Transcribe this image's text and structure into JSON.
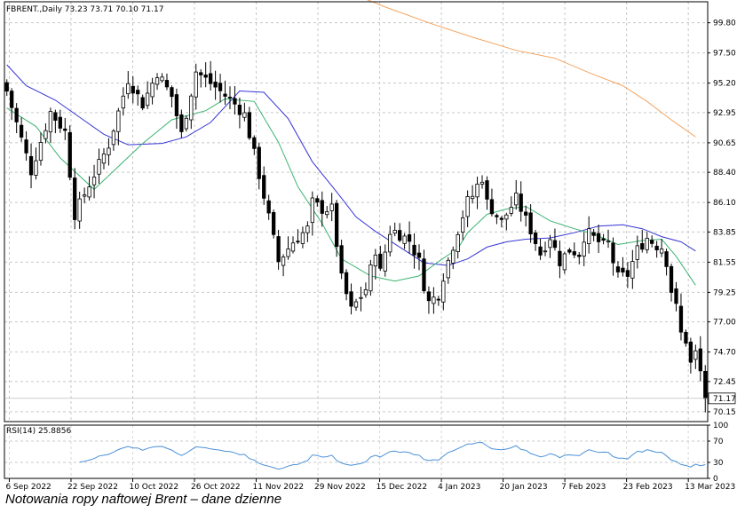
{
  "chart_data": {
    "type": "candlestick",
    "instrument_label": "FBRENT.,Daily  73.23 73.71 70.10 71.17",
    "last_ohlc": {
      "open": 73.23,
      "high": 73.71,
      "low": 70.1,
      "close": 71.17
    },
    "last_price_label": "71.17",
    "price_axis": {
      "ylim": [
        69.4,
        101.4
      ],
      "ticks": [
        "99.80",
        "97.50",
        "95.20",
        "92.95",
        "90.65",
        "88.40",
        "86.10",
        "83.85",
        "81.55",
        "79.25",
        "77.00",
        "74.70",
        "72.45",
        "70.15"
      ]
    },
    "x_labels": [
      "6 Sep 2022",
      "22 Sep 2022",
      "10 Oct 2022",
      "26 Oct 2022",
      "11 Nov 2022",
      "29 Nov 2022",
      "15 Dec 2022",
      "4 Jan 2023",
      "20 Jan 2023",
      "7 Feb 2023",
      "23 Feb 2023",
      "13 Mar 2023"
    ],
    "close_path": [
      [
        0,
        94.6
      ],
      [
        5,
        88.5
      ],
      [
        9,
        93.0
      ],
      [
        12,
        91.5
      ],
      [
        14,
        85.2
      ],
      [
        17,
        87.5
      ],
      [
        21,
        90.5
      ],
      [
        25,
        95.5
      ],
      [
        28,
        93.6
      ],
      [
        31,
        96.0
      ],
      [
        34,
        94.2
      ],
      [
        36,
        91.3
      ],
      [
        39,
        96.1
      ],
      [
        43,
        94.9
      ],
      [
        47,
        93.6
      ],
      [
        49,
        92.8
      ],
      [
        51,
        89.8
      ],
      [
        54,
        85.0
      ],
      [
        56,
        81.6
      ],
      [
        59,
        83.1
      ],
      [
        62,
        84.1
      ],
      [
        63,
        86.1
      ],
      [
        65,
        85.6
      ],
      [
        67,
        85.6
      ],
      [
        69,
        80.3
      ],
      [
        71,
        77.9
      ],
      [
        74,
        79.5
      ],
      [
        76,
        82.5
      ],
      [
        77,
        80.8
      ],
      [
        79,
        83.9
      ],
      [
        80,
        83.9
      ],
      [
        83,
        83.2
      ],
      [
        85,
        81.6
      ],
      [
        86,
        79.8
      ],
      [
        87,
        78.5
      ],
      [
        89,
        79.1
      ],
      [
        90,
        80.5
      ],
      [
        93,
        84.0
      ],
      [
        95,
        86.2
      ],
      [
        96,
        86.6
      ],
      [
        97,
        87.4
      ],
      [
        98,
        88.0
      ],
      [
        99,
        86.1
      ],
      [
        102,
        84.6
      ],
      [
        105,
        86.4
      ],
      [
        108,
        84.0
      ],
      [
        110,
        82.2
      ],
      [
        112,
        83.5
      ],
      [
        114,
        81.6
      ],
      [
        116,
        82.5
      ],
      [
        118,
        82.2
      ],
      [
        119,
        83.5
      ],
      [
        120,
        83.7
      ],
      [
        121,
        83.4
      ],
      [
        123,
        82.8
      ],
      [
        124,
        83.0
      ],
      [
        125,
        81.6
      ],
      [
        126,
        80.4
      ],
      [
        128,
        80.6
      ],
      [
        130,
        82.5
      ],
      [
        132,
        83.4
      ],
      [
        133,
        83.1
      ],
      [
        134,
        82.8
      ],
      [
        135,
        82.7
      ],
      [
        136,
        81.6
      ],
      [
        137,
        79.4
      ],
      [
        138,
        78.1
      ],
      [
        139,
        76.1
      ],
      [
        140,
        75.6
      ],
      [
        141,
        73.8
      ],
      [
        142,
        74.6
      ],
      [
        143,
        73.2
      ],
      [
        144,
        71.17
      ]
    ],
    "sma_short": {
      "color": "#3cb371",
      "values": [
        [
          0,
          93.3
        ],
        [
          6,
          91.9
        ],
        [
          11,
          89.5
        ],
        [
          18,
          87.1
        ],
        [
          22,
          88.5
        ],
        [
          28,
          90.6
        ],
        [
          34,
          92.4
        ],
        [
          41,
          93.1
        ],
        [
          45,
          94.0
        ],
        [
          51,
          93.8
        ],
        [
          56,
          90.7
        ],
        [
          60,
          87.3
        ],
        [
          65,
          84.5
        ],
        [
          69,
          81.8
        ],
        [
          75,
          80.5
        ],
        [
          80,
          80.1
        ],
        [
          85,
          80.5
        ],
        [
          89,
          81.6
        ],
        [
          93,
          82.6
        ],
        [
          95,
          83.8
        ],
        [
          99,
          85.2
        ],
        [
          103,
          85.6
        ],
        [
          107,
          85.8
        ],
        [
          112,
          84.7
        ],
        [
          117,
          84.1
        ],
        [
          121,
          83.7
        ],
        [
          126,
          82.9
        ],
        [
          131,
          83.2
        ],
        [
          135,
          83.3
        ],
        [
          138,
          82.0
        ],
        [
          142,
          79.8
        ]
      ]
    },
    "sma_mid": {
      "color": "#3636d6",
      "values": [
        [
          0,
          96.6
        ],
        [
          4,
          95.0
        ],
        [
          10,
          93.9
        ],
        [
          15,
          92.6
        ],
        [
          20,
          91.3
        ],
        [
          25,
          90.5
        ],
        [
          32,
          90.6
        ],
        [
          37,
          91.1
        ],
        [
          42,
          92.2
        ],
        [
          48,
          94.6
        ],
        [
          53,
          94.5
        ],
        [
          58,
          92.5
        ],
        [
          63,
          89.2
        ],
        [
          68,
          86.9
        ],
        [
          72,
          85.0
        ],
        [
          76,
          83.9
        ],
        [
          81,
          82.7
        ],
        [
          86,
          81.5
        ],
        [
          91,
          81.3
        ],
        [
          95,
          81.8
        ],
        [
          99,
          82.7
        ],
        [
          103,
          83.1
        ],
        [
          107,
          83.3
        ],
        [
          112,
          83.4
        ],
        [
          117,
          83.8
        ],
        [
          122,
          84.3
        ],
        [
          127,
          84.4
        ],
        [
          131,
          84.1
        ],
        [
          135,
          83.5
        ],
        [
          139,
          83.1
        ],
        [
          142,
          82.4
        ]
      ]
    },
    "sma_long": {
      "color": "#f4a460",
      "values": [
        [
          70,
          102.2
        ],
        [
          78,
          101.0
        ],
        [
          87,
          99.8
        ],
        [
          96,
          98.7
        ],
        [
          105,
          97.7
        ],
        [
          113,
          97.1
        ],
        [
          120,
          96.0
        ],
        [
          127,
          95.0
        ],
        [
          132,
          93.8
        ],
        [
          137,
          92.4
        ],
        [
          142,
          91.1
        ]
      ]
    },
    "rsi": {
      "label": "RSI(14) 25.8856",
      "period": 14,
      "last": 25.8856,
      "ticks": [
        "100",
        "70",
        "30",
        "0"
      ],
      "levels": [
        30,
        70
      ],
      "color": "#4a90d9"
    }
  },
  "caption": "Notowania ropy naftowej Brent – dane dzienne"
}
